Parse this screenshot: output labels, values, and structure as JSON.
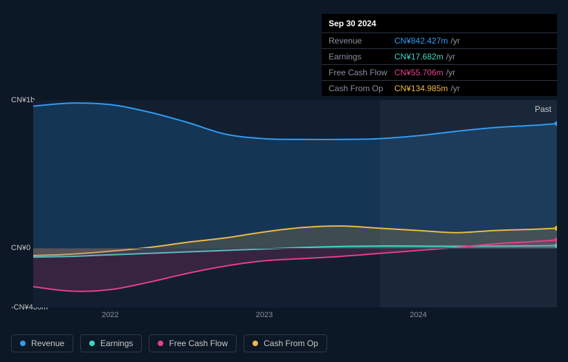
{
  "tooltip": {
    "date": "Sep 30 2024",
    "rows": [
      {
        "label": "Revenue",
        "value": "CN¥842.427m",
        "suffix": "/yr",
        "color": "#2f9df4"
      },
      {
        "label": "Earnings",
        "value": "CN¥17.682m",
        "suffix": "/yr",
        "color": "#3ed6c4"
      },
      {
        "label": "Free Cash Flow",
        "value": "CN¥55.706m",
        "suffix": "/yr",
        "color": "#e83e8c"
      },
      {
        "label": "Cash From Op",
        "value": "CN¥134.985m",
        "suffix": "/yr",
        "color": "#f0b94a"
      }
    ]
  },
  "chart": {
    "type": "area",
    "background_color": "#111f31",
    "container_bg": "#0d1826",
    "shade_color": "rgba(255,255,255,0.04)",
    "zero_line_color": "#3a4550",
    "past_label": "Past",
    "y": {
      "min": -400,
      "max": 1000,
      "ticks": [
        {
          "v": 1000,
          "label": "CN¥1b"
        },
        {
          "v": 0,
          "label": "CN¥0"
        },
        {
          "v": -400,
          "label": "-CN¥400m"
        }
      ],
      "label_fontsize": 11,
      "label_color": "#c8c8c8"
    },
    "x": {
      "min": 2021.5,
      "max": 2024.9,
      "ticks": [
        {
          "v": 2022,
          "label": "2022"
        },
        {
          "v": 2023,
          "label": "2023"
        },
        {
          "v": 2024,
          "label": "2024"
        }
      ],
      "shade_from": 2023.75,
      "label_fontsize": 11,
      "label_color": "#8a929c"
    },
    "series": [
      {
        "name": "Revenue",
        "color": "#2f9df4",
        "points": [
          [
            2021.5,
            960
          ],
          [
            2021.75,
            980
          ],
          [
            2022.0,
            970
          ],
          [
            2022.25,
            920
          ],
          [
            2022.5,
            850
          ],
          [
            2022.75,
            770
          ],
          [
            2023.0,
            740
          ],
          [
            2023.25,
            735
          ],
          [
            2023.5,
            735
          ],
          [
            2023.75,
            740
          ],
          [
            2024.0,
            760
          ],
          [
            2024.25,
            790
          ],
          [
            2024.5,
            815
          ],
          [
            2024.75,
            830
          ],
          [
            2024.9,
            842
          ]
        ]
      },
      {
        "name": "Cash From Op",
        "color": "#f0b94a",
        "points": [
          [
            2021.5,
            -50
          ],
          [
            2021.75,
            -40
          ],
          [
            2022.0,
            -20
          ],
          [
            2022.25,
            5
          ],
          [
            2022.5,
            40
          ],
          [
            2022.75,
            70
          ],
          [
            2023.0,
            110
          ],
          [
            2023.25,
            140
          ],
          [
            2023.5,
            150
          ],
          [
            2023.75,
            135
          ],
          [
            2024.0,
            120
          ],
          [
            2024.25,
            105
          ],
          [
            2024.5,
            120
          ],
          [
            2024.75,
            128
          ],
          [
            2024.9,
            135
          ]
        ]
      },
      {
        "name": "Earnings",
        "color": "#3ed6c4",
        "points": [
          [
            2021.5,
            -60
          ],
          [
            2021.75,
            -55
          ],
          [
            2022.0,
            -45
          ],
          [
            2022.25,
            -35
          ],
          [
            2022.5,
            -25
          ],
          [
            2022.75,
            -15
          ],
          [
            2023.0,
            -5
          ],
          [
            2023.25,
            5
          ],
          [
            2023.5,
            12
          ],
          [
            2023.75,
            15
          ],
          [
            2024.0,
            14
          ],
          [
            2024.25,
            13
          ],
          [
            2024.5,
            14
          ],
          [
            2024.75,
            16
          ],
          [
            2024.9,
            18
          ]
        ]
      },
      {
        "name": "Free Cash Flow",
        "color": "#e83e8c",
        "points": [
          [
            2021.5,
            -260
          ],
          [
            2021.75,
            -290
          ],
          [
            2022.0,
            -280
          ],
          [
            2022.25,
            -230
          ],
          [
            2022.5,
            -170
          ],
          [
            2022.75,
            -120
          ],
          [
            2023.0,
            -85
          ],
          [
            2023.25,
            -70
          ],
          [
            2023.5,
            -55
          ],
          [
            2023.75,
            -35
          ],
          [
            2024.0,
            -15
          ],
          [
            2024.25,
            5
          ],
          [
            2024.5,
            30
          ],
          [
            2024.75,
            45
          ],
          [
            2024.9,
            56
          ]
        ]
      }
    ],
    "line_width": 2,
    "area_opacity": 0.18,
    "end_dot_radius": 3.5
  },
  "legend": {
    "items": [
      {
        "label": "Revenue",
        "color": "#2f9df4"
      },
      {
        "label": "Earnings",
        "color": "#3ed6c4"
      },
      {
        "label": "Free Cash Flow",
        "color": "#e83e8c"
      },
      {
        "label": "Cash From Op",
        "color": "#f0b94a"
      }
    ],
    "fontsize": 12,
    "border_color": "#2f3a48"
  }
}
